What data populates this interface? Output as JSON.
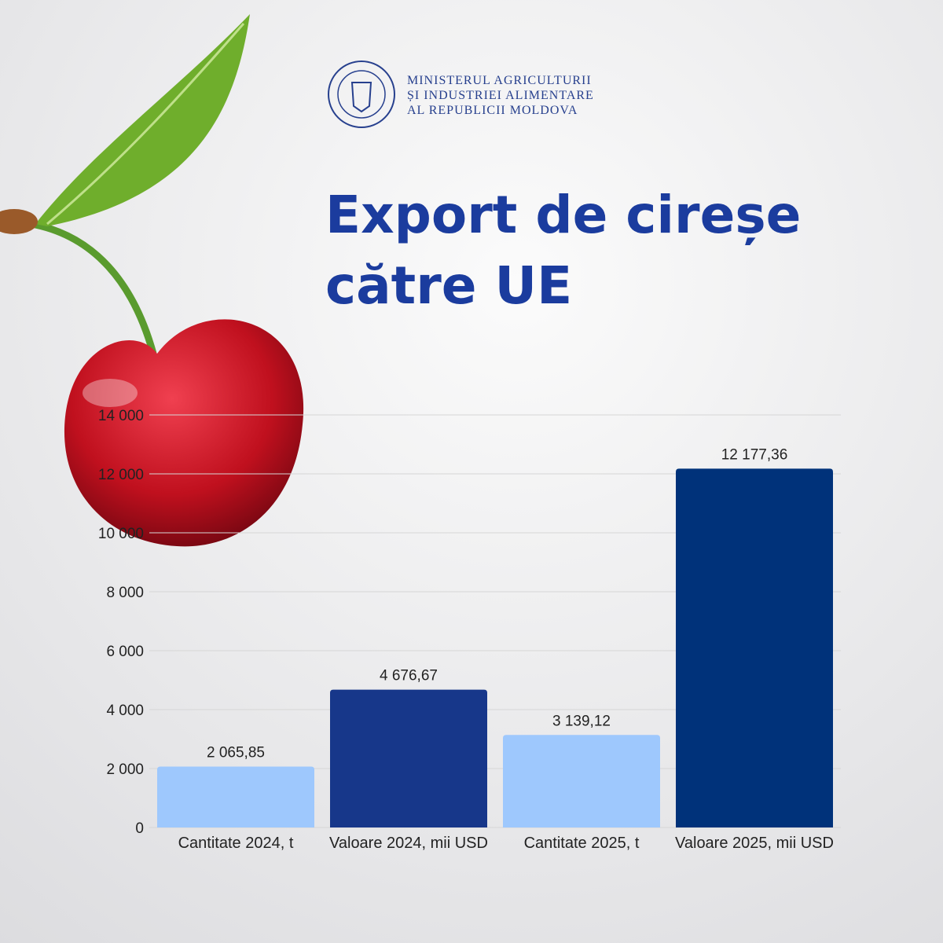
{
  "header": {
    "ministry": [
      "MINISTERUL AGRICULTURII",
      "ȘI INDUSTRIEI ALIMENTARE",
      "AL REPUBLICII MOLDOVA"
    ]
  },
  "chart_data": {
    "type": "bar",
    "title": [
      "Export de cireșe",
      "către UE"
    ],
    "categories": [
      "Cantitate 2024, t",
      "Valoare 2024, mii USD",
      "Cantitate 2025, t",
      "Valoare 2025, mii USD"
    ],
    "values": [
      2065.85,
      4676.67,
      3139.12,
      12177.36
    ],
    "value_labels": [
      "2 065,85",
      "4 676,67",
      "3 139,12",
      "12 177,36"
    ],
    "colors": [
      "#9ec8fd",
      "#17378a",
      "#9ec8fd",
      "#00327a"
    ],
    "ylim": [
      0,
      14000
    ],
    "yticks": [
      0,
      {
        "value": 2000,
        "label": "2 000"
      },
      {
        "value": 4000,
        "label": "4 000"
      },
      {
        "value": 6000,
        "label": "6 000"
      },
      {
        "value": 8000,
        "label": "8 000"
      },
      {
        "value": 10000,
        "label": "10 000"
      },
      {
        "value": 12000,
        "label": "12 000"
      },
      {
        "value": 14000,
        "label": "14 000"
      }
    ],
    "grid": true
  }
}
